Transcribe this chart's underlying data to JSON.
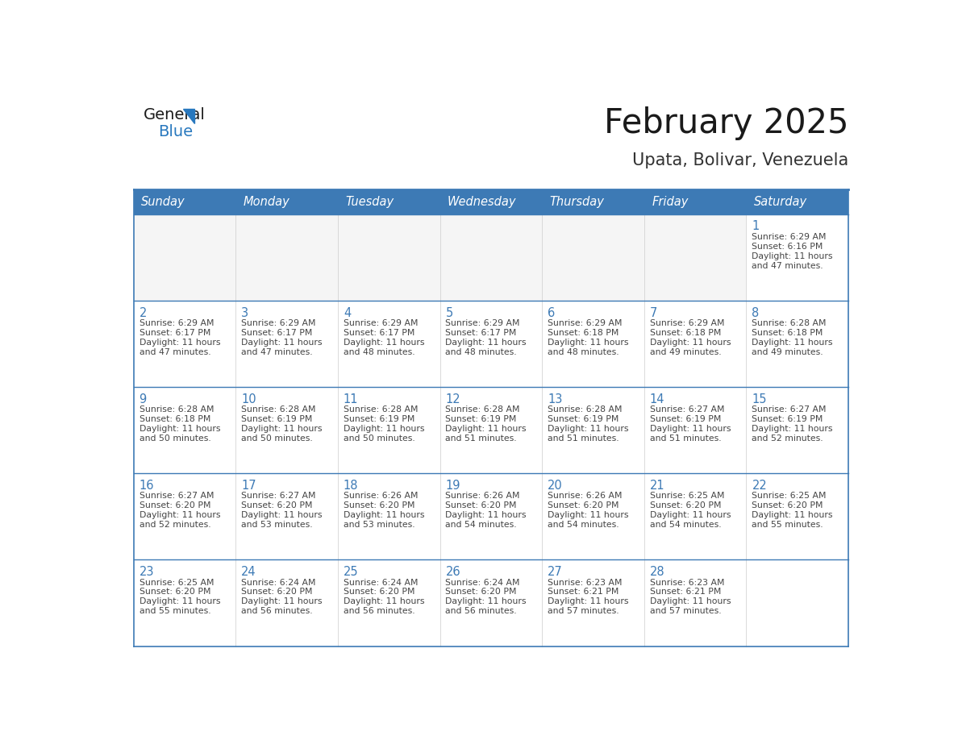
{
  "title": "February 2025",
  "subtitle": "Upata, Bolivar, Venezuela",
  "days_of_week": [
    "Sunday",
    "Monday",
    "Tuesday",
    "Wednesday",
    "Thursday",
    "Friday",
    "Saturday"
  ],
  "header_bg_color": "#3D7AB5",
  "header_text_color": "#FFFFFF",
  "cell_bg_color": "#FFFFFF",
  "grid_color": "#3D7AB5",
  "separator_color": "#3D7AB5",
  "title_color": "#1a1a1a",
  "subtitle_color": "#333333",
  "day_number_color": "#3D7AB5",
  "cell_text_color": "#444444",
  "logo_general_color": "#1a1a1a",
  "logo_blue_color": "#2878BE",
  "calendar_data": [
    [
      null,
      null,
      null,
      null,
      null,
      null,
      {
        "day": 1,
        "sunrise": "6:29 AM",
        "sunset": "6:16 PM",
        "daylight": "11 hours and 47 minutes."
      }
    ],
    [
      {
        "day": 2,
        "sunrise": "6:29 AM",
        "sunset": "6:17 PM",
        "daylight": "11 hours and 47 minutes."
      },
      {
        "day": 3,
        "sunrise": "6:29 AM",
        "sunset": "6:17 PM",
        "daylight": "11 hours and 47 minutes."
      },
      {
        "day": 4,
        "sunrise": "6:29 AM",
        "sunset": "6:17 PM",
        "daylight": "11 hours and 48 minutes."
      },
      {
        "day": 5,
        "sunrise": "6:29 AM",
        "sunset": "6:17 PM",
        "daylight": "11 hours and 48 minutes."
      },
      {
        "day": 6,
        "sunrise": "6:29 AM",
        "sunset": "6:18 PM",
        "daylight": "11 hours and 48 minutes."
      },
      {
        "day": 7,
        "sunrise": "6:29 AM",
        "sunset": "6:18 PM",
        "daylight": "11 hours and 49 minutes."
      },
      {
        "day": 8,
        "sunrise": "6:28 AM",
        "sunset": "6:18 PM",
        "daylight": "11 hours and 49 minutes."
      }
    ],
    [
      {
        "day": 9,
        "sunrise": "6:28 AM",
        "sunset": "6:18 PM",
        "daylight": "11 hours and 50 minutes."
      },
      {
        "day": 10,
        "sunrise": "6:28 AM",
        "sunset": "6:19 PM",
        "daylight": "11 hours and 50 minutes."
      },
      {
        "day": 11,
        "sunrise": "6:28 AM",
        "sunset": "6:19 PM",
        "daylight": "11 hours and 50 minutes."
      },
      {
        "day": 12,
        "sunrise": "6:28 AM",
        "sunset": "6:19 PM",
        "daylight": "11 hours and 51 minutes."
      },
      {
        "day": 13,
        "sunrise": "6:28 AM",
        "sunset": "6:19 PM",
        "daylight": "11 hours and 51 minutes."
      },
      {
        "day": 14,
        "sunrise": "6:27 AM",
        "sunset": "6:19 PM",
        "daylight": "11 hours and 51 minutes."
      },
      {
        "day": 15,
        "sunrise": "6:27 AM",
        "sunset": "6:19 PM",
        "daylight": "11 hours and 52 minutes."
      }
    ],
    [
      {
        "day": 16,
        "sunrise": "6:27 AM",
        "sunset": "6:20 PM",
        "daylight": "11 hours and 52 minutes."
      },
      {
        "day": 17,
        "sunrise": "6:27 AM",
        "sunset": "6:20 PM",
        "daylight": "11 hours and 53 minutes."
      },
      {
        "day": 18,
        "sunrise": "6:26 AM",
        "sunset": "6:20 PM",
        "daylight": "11 hours and 53 minutes."
      },
      {
        "day": 19,
        "sunrise": "6:26 AM",
        "sunset": "6:20 PM",
        "daylight": "11 hours and 54 minutes."
      },
      {
        "day": 20,
        "sunrise": "6:26 AM",
        "sunset": "6:20 PM",
        "daylight": "11 hours and 54 minutes."
      },
      {
        "day": 21,
        "sunrise": "6:25 AM",
        "sunset": "6:20 PM",
        "daylight": "11 hours and 54 minutes."
      },
      {
        "day": 22,
        "sunrise": "6:25 AM",
        "sunset": "6:20 PM",
        "daylight": "11 hours and 55 minutes."
      }
    ],
    [
      {
        "day": 23,
        "sunrise": "6:25 AM",
        "sunset": "6:20 PM",
        "daylight": "11 hours and 55 minutes."
      },
      {
        "day": 24,
        "sunrise": "6:24 AM",
        "sunset": "6:20 PM",
        "daylight": "11 hours and 56 minutes."
      },
      {
        "day": 25,
        "sunrise": "6:24 AM",
        "sunset": "6:20 PM",
        "daylight": "11 hours and 56 minutes."
      },
      {
        "day": 26,
        "sunrise": "6:24 AM",
        "sunset": "6:20 PM",
        "daylight": "11 hours and 56 minutes."
      },
      {
        "day": 27,
        "sunrise": "6:23 AM",
        "sunset": "6:21 PM",
        "daylight": "11 hours and 57 minutes."
      },
      {
        "day": 28,
        "sunrise": "6:23 AM",
        "sunset": "6:21 PM",
        "daylight": "11 hours and 57 minutes."
      },
      null
    ]
  ]
}
